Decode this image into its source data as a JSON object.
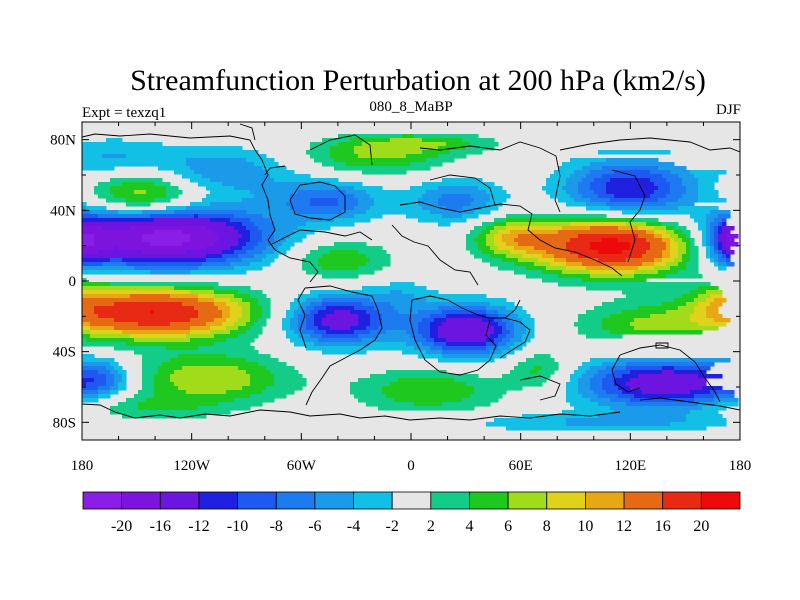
{
  "chart_data": {
    "type": "heatmap",
    "title": "Streamfunction Perturbation at 200 hPa (km2/s)",
    "left_label": "Expt = texzq1",
    "center_label": "080_8_MaBP",
    "right_label": "DJF",
    "x_ticks": [
      "180",
      "120W",
      "60W",
      "0",
      "60E",
      "120E",
      "180"
    ],
    "x_tick_values": [
      -180,
      -120,
      -60,
      0,
      60,
      120,
      180
    ],
    "y_ticks": [
      "80N",
      "40N",
      "0",
      "40S",
      "80S"
    ],
    "y_tick_values": [
      80,
      40,
      0,
      -40,
      -80
    ],
    "xlim": [
      -180,
      180
    ],
    "ylim": [
      -90,
      90
    ],
    "colorbar_labels": [
      "-20",
      "-16",
      "-12",
      "-10",
      "-8",
      "-6",
      "-4",
      "-2",
      "2",
      "4",
      "6",
      "8",
      "10",
      "12",
      "16",
      "20"
    ],
    "colorbar_levels": [
      -20,
      -16,
      -12,
      -10,
      -8,
      -6,
      -4,
      -2,
      2,
      4,
      6,
      8,
      10,
      12,
      16,
      20
    ],
    "colorbar_colors": [
      "#8a1ee6",
      "#7d14de",
      "#6c14e0",
      "#2020e0",
      "#1e5af0",
      "#1e7af0",
      "#1a9ae8",
      "#12c0e6",
      "#e6e6e6",
      "#12cc88",
      "#1ec81e",
      "#a0dc1a",
      "#e0d21a",
      "#e8a814",
      "#e66a14",
      "#e82a14",
      "#ee0a0a"
    ],
    "features": [
      {
        "lon": -135,
        "lat": 25,
        "value": -22,
        "sx": 38,
        "sy": 12
      },
      {
        "lon": -140,
        "lat": -18,
        "value": 20,
        "sx": 36,
        "sy": 10
      },
      {
        "lon": -145,
        "lat": 48,
        "value": 10,
        "sx": 22,
        "sy": 10
      },
      {
        "lon": -105,
        "lat": 62,
        "value": -6,
        "sx": 30,
        "sy": 10
      },
      {
        "lon": -165,
        "lat": 70,
        "value": -4,
        "sx": 22,
        "sy": 8
      },
      {
        "lon": -110,
        "lat": -55,
        "value": 8,
        "sx": 30,
        "sy": 10
      },
      {
        "lon": -150,
        "lat": -72,
        "value": 4,
        "sx": 30,
        "sy": 6
      },
      {
        "lon": -170,
        "lat": -55,
        "value": -6,
        "sx": 12,
        "sy": 8
      },
      {
        "lon": -40,
        "lat": -22,
        "value": -14,
        "sx": 20,
        "sy": 10
      },
      {
        "lon": -45,
        "lat": 45,
        "value": -8,
        "sx": 20,
        "sy": 8
      },
      {
        "lon": -40,
        "lat": 12,
        "value": 6,
        "sx": 20,
        "sy": 8
      },
      {
        "lon": -20,
        "lat": 70,
        "value": 6,
        "sx": 30,
        "sy": 7
      },
      {
        "lon": 25,
        "lat": 45,
        "value": -7,
        "sx": 18,
        "sy": 9
      },
      {
        "lon": 30,
        "lat": -28,
        "value": -16,
        "sx": 20,
        "sy": 10
      },
      {
        "lon": 10,
        "lat": -62,
        "value": 6,
        "sx": 28,
        "sy": 9
      },
      {
        "lon": 5,
        "lat": 78,
        "value": 5,
        "sx": 30,
        "sy": 4
      },
      {
        "lon": 110,
        "lat": 20,
        "value": 22,
        "sx": 30,
        "sy": 11
      },
      {
        "lon": 120,
        "lat": 52,
        "value": -12,
        "sx": 25,
        "sy": 12
      },
      {
        "lon": 55,
        "lat": 25,
        "value": 8,
        "sx": 15,
        "sy": 8
      },
      {
        "lon": 140,
        "lat": -58,
        "value": -15,
        "sx": 32,
        "sy": 10
      },
      {
        "lon": 130,
        "lat": -25,
        "value": 6,
        "sx": 28,
        "sy": 9
      },
      {
        "lon": 100,
        "lat": -80,
        "value": -4,
        "sx": 60,
        "sy": 4
      },
      {
        "lon": 178,
        "lat": 22,
        "value": -12,
        "sx": 10,
        "sy": 10
      },
      {
        "lon": 175,
        "lat": -10,
        "value": 5,
        "sx": 15,
        "sy": 9
      },
      {
        "lon": 70,
        "lat": -50,
        "value": 5,
        "sx": 12,
        "sy": 8
      },
      {
        "lon": -5,
        "lat": -8,
        "value": -3,
        "sx": 12,
        "sy": 7
      }
    ]
  }
}
